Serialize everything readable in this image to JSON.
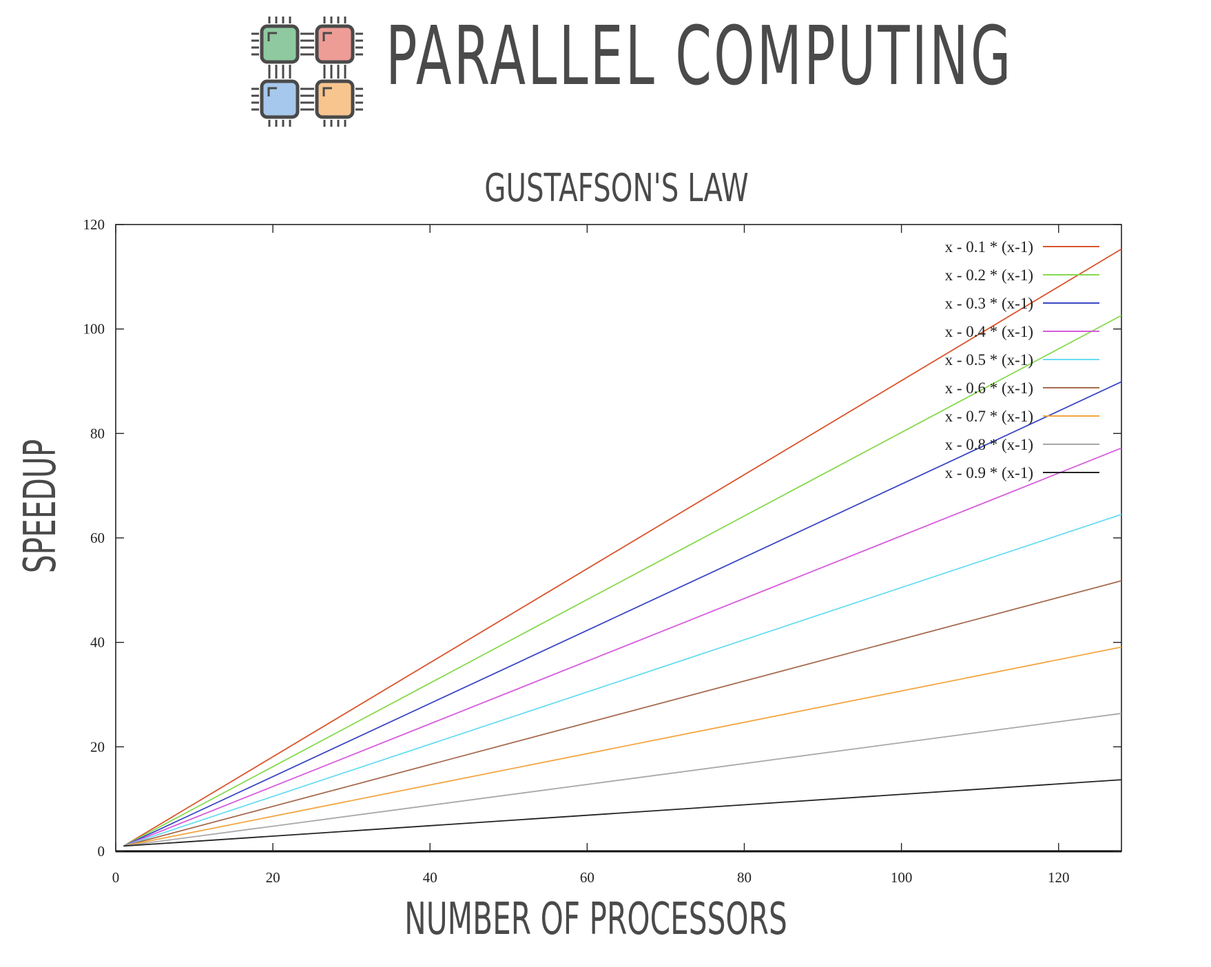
{
  "header": {
    "title": "PARALLEL COMPUTING",
    "logo_icon": "four-cpu-chips-icon",
    "logo_colors": [
      "#8fc9a0",
      "#ee9c96",
      "#a6c8ec",
      "#f8c58f"
    ]
  },
  "chart_data": {
    "type": "line",
    "title": "GUSTAFSON'S LAW",
    "xlabel": "NUMBER OF PROCESSORS",
    "ylabel": "SPEEDUP",
    "xlim": [
      0,
      128
    ],
    "ylim": [
      0,
      120
    ],
    "xticks": [
      0,
      20,
      40,
      60,
      80,
      100,
      120
    ],
    "yticks": [
      0,
      20,
      40,
      60,
      80,
      100,
      120
    ],
    "grid": false,
    "legend_position": "top-right",
    "x": [
      1,
      128
    ],
    "series": [
      {
        "name": "x - 0.1 * (x-1)",
        "values": [
          1,
          115.3
        ],
        "color": "#d9542b"
      },
      {
        "name": "x - 0.2 * (x-1)",
        "values": [
          1,
          102.6
        ],
        "color": "#86d94e"
      },
      {
        "name": "x - 0.3 * (x-1)",
        "values": [
          1,
          89.9
        ],
        "color": "#3a47c4"
      },
      {
        "name": "x - 0.4 * (x-1)",
        "values": [
          1,
          77.2
        ],
        "color": "#d55bdc"
      },
      {
        "name": "x - 0.5 * (x-1)",
        "values": [
          1,
          64.5
        ],
        "color": "#67dcf2"
      },
      {
        "name": "x - 0.6 * (x-1)",
        "values": [
          1,
          51.8
        ],
        "color": "#a66a4f"
      },
      {
        "name": "x - 0.7 * (x-1)",
        "values": [
          1,
          39.1
        ],
        "color": "#f2a640"
      },
      {
        "name": "x - 0.8 * (x-1)",
        "values": [
          1,
          26.4
        ],
        "color": "#a8a8a8"
      },
      {
        "name": "x - 0.9 * (x-1)",
        "values": [
          1,
          13.7
        ],
        "color": "#222222"
      }
    ]
  }
}
